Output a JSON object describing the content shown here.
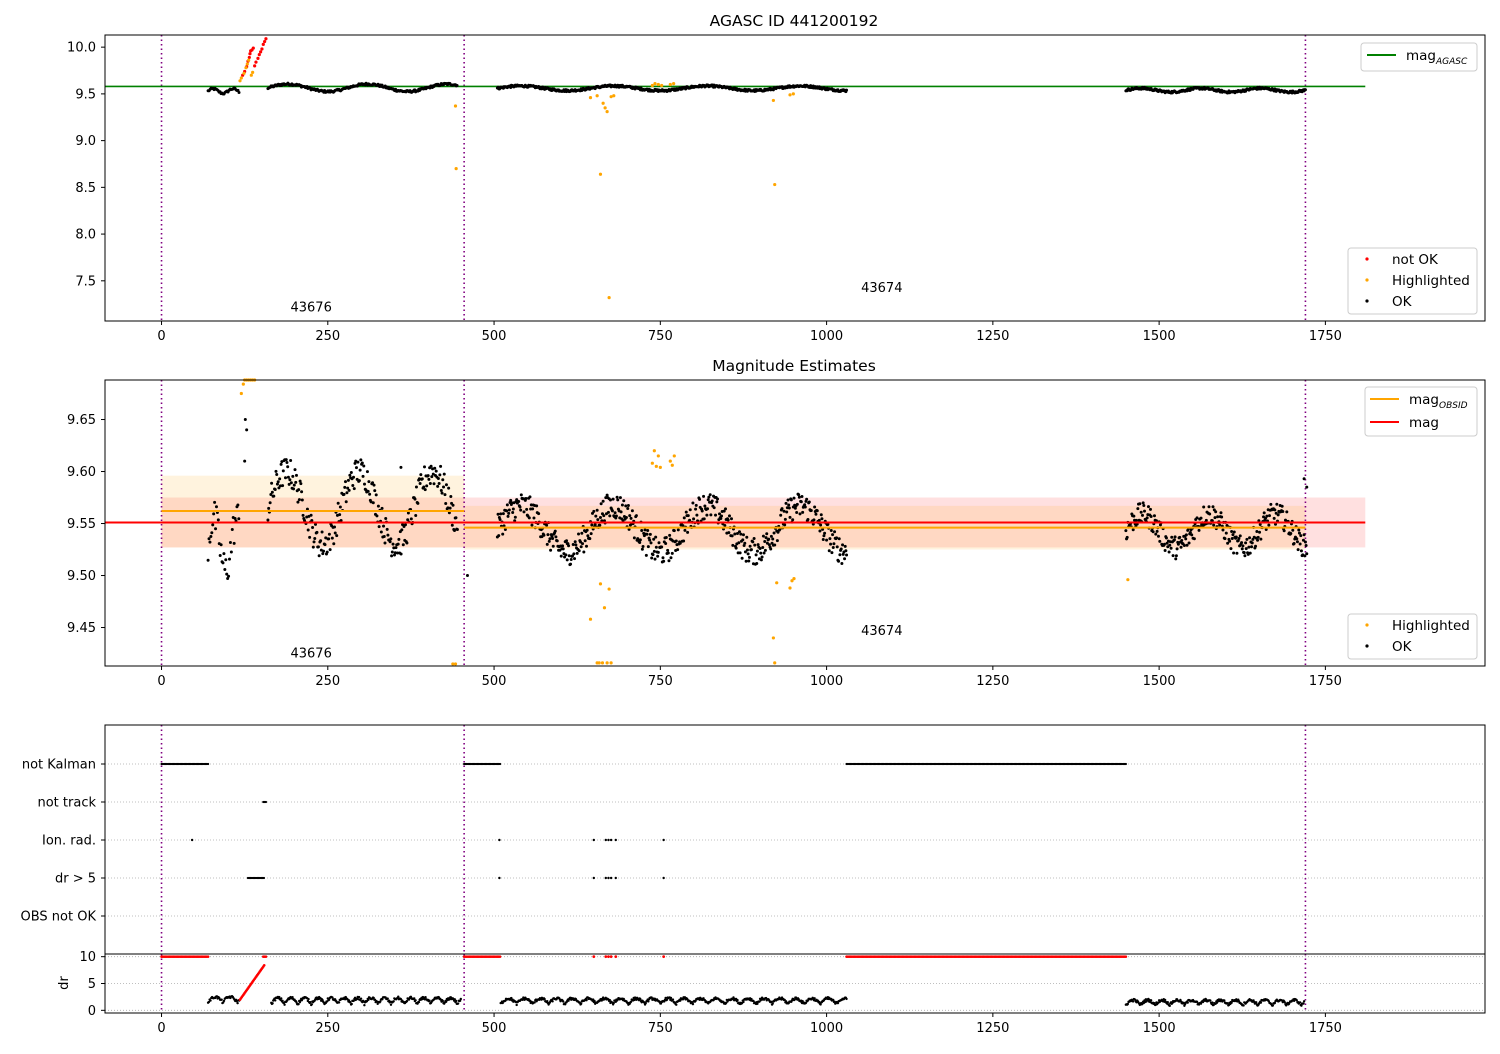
{
  "figure": {
    "panel1_title": "AGASC ID 441200192",
    "panel2_title": "Magnitude Estimates"
  },
  "chart_data": [
    {
      "type": "scatter",
      "title": "AGASC ID 441200192",
      "xlabel": "",
      "ylabel": "",
      "xlim": [
        -85,
        1990
      ],
      "ylim": [
        7.07,
        10.13
      ],
      "xticks": [
        0,
        250,
        500,
        750,
        1000,
        1250,
        1500,
        1750
      ],
      "yticks": [
        7.5,
        8.0,
        8.5,
        9.0,
        9.5,
        10.0
      ],
      "grid": false,
      "obsid_boundaries": [
        0,
        455,
        1720
      ],
      "obsid_labels": [
        {
          "text": "43676",
          "x": 225,
          "y": 7.17
        },
        {
          "text": "43674",
          "x": 1083,
          "y": 7.38
        }
      ],
      "reference_lines": [
        {
          "name": "mag_AGASC",
          "legend": "mag",
          "legend_sub": "AGASC",
          "y": 9.58,
          "x_range": [
            -85,
            1810
          ],
          "color": "#008000"
        }
      ],
      "series": [
        {
          "name": "not OK",
          "color": "#ff0000",
          "points": [
            [
              122,
              9.7
            ],
            [
              125,
              9.74
            ],
            [
              128,
              9.79
            ],
            [
              130,
              9.85
            ],
            [
              132,
              9.89
            ],
            [
              133,
              9.93
            ],
            [
              134,
              9.96
            ],
            [
              136,
              9.97
            ],
            [
              138,
              9.99
            ],
            [
              140,
              9.8
            ],
            [
              142,
              9.84
            ],
            [
              145,
              9.88
            ],
            [
              147,
              9.92
            ],
            [
              149,
              9.95
            ],
            [
              151,
              9.98
            ],
            [
              153,
              10.03
            ],
            [
              155,
              10.06
            ],
            [
              157,
              10.09
            ]
          ]
        },
        {
          "name": "Highlighted",
          "color": "#ffa500",
          "points": [
            [
              118,
              9.64
            ],
            [
              120,
              9.67
            ],
            [
              124,
              9.72
            ],
            [
              127,
              9.78
            ],
            [
              129,
              9.82
            ],
            [
              131,
              9.86
            ],
            [
              135,
              9.7
            ],
            [
              137,
              9.73
            ],
            [
              442,
              9.37
            ],
            [
              443,
              8.7
            ],
            [
              645,
              9.46
            ],
            [
              655,
              9.48
            ],
            [
              660,
              8.64
            ],
            [
              664,
              9.4
            ],
            [
              667,
              9.35
            ],
            [
              670,
              9.31
            ],
            [
              673,
              7.32
            ],
            [
              676,
              9.47
            ],
            [
              680,
              9.48
            ],
            [
              738,
              9.59
            ],
            [
              742,
              9.61
            ],
            [
              747,
              9.6
            ],
            [
              752,
              9.59
            ],
            [
              765,
              9.6
            ],
            [
              770,
              9.61
            ],
            [
              920,
              9.43
            ],
            [
              922,
              8.53
            ],
            [
              945,
              9.49
            ],
            [
              950,
              9.5
            ]
          ]
        },
        {
          "name": "OK",
          "color": "#000000",
          "segments": [
            {
              "x_start": 70,
              "x_end": 117,
              "step": 1.5,
              "base": 9.53,
              "amp": 0.025,
              "period": 30
            },
            {
              "x_start": 160,
              "x_end": 445,
              "step": 1.2,
              "base": 9.565,
              "amp": 0.04,
              "period": 120
            },
            {
              "x_start": 505,
              "x_end": 1030,
              "step": 1.0,
              "base": 9.56,
              "amp": 0.025,
              "period": 140
            },
            {
              "x_start": 1450,
              "x_end": 1720,
              "step": 1.0,
              "base": 9.54,
              "amp": 0.02,
              "period": 90
            }
          ]
        }
      ],
      "legend": {
        "entries": [
          "not OK",
          "Highlighted",
          "OK"
        ],
        "placement": "lower-right"
      }
    },
    {
      "type": "scatter",
      "title": "Magnitude Estimates",
      "xlabel": "",
      "ylabel": "",
      "xlim": [
        -85,
        1990
      ],
      "ylim": [
        9.413,
        9.688
      ],
      "xticks": [
        0,
        250,
        500,
        750,
        1000,
        1250,
        1500,
        1750
      ],
      "yticks": [
        9.45,
        9.5,
        9.55,
        9.6,
        9.65
      ],
      "grid": false,
      "obsid_boundaries": [
        0,
        455,
        1720
      ],
      "obsid_labels": [
        {
          "text": "43676",
          "x": 225,
          "y": 9.421
        },
        {
          "text": "43674",
          "x": 1083,
          "y": 9.443
        }
      ],
      "bands": [
        {
          "name": "mag band",
          "y_range": [
            9.527,
            9.575
          ],
          "x_range": [
            0,
            1810
          ],
          "color": "#ff0000",
          "opacity": 0.12
        },
        {
          "name": "mag_OBSID 43676 band",
          "y_range": [
            9.527,
            9.596
          ],
          "x_range": [
            0,
            455
          ],
          "color": "#ffa500",
          "opacity": 0.13
        },
        {
          "name": "mag_OBSID 43674 band",
          "y_range": [
            9.525,
            9.567
          ],
          "x_range": [
            455,
            1720
          ],
          "color": "#ffa500",
          "opacity": 0.13
        }
      ],
      "reference_lines": [
        {
          "name": "mag_OBSID 43676",
          "y": 9.562,
          "x_range": [
            0,
            455
          ],
          "color": "#ffa500"
        },
        {
          "name": "mag_OBSID 43674",
          "y": 9.546,
          "x_range": [
            455,
            1720
          ],
          "color": "#ffa500"
        },
        {
          "name": "mag",
          "y": 9.551,
          "x_range": [
            -85,
            1810
          ],
          "color": "#ff0000"
        }
      ],
      "series": [
        {
          "name": "Highlighted",
          "color": "#ffa500",
          "points": [
            [
              120,
              9.675
            ],
            [
              123,
              9.684
            ],
            [
              125,
              9.688
            ],
            [
              128,
              9.688
            ],
            [
              131,
              9.688
            ],
            [
              134,
              9.688
            ],
            [
              137,
              9.688
            ],
            [
              140,
              9.688
            ],
            [
              438,
              9.415
            ],
            [
              442,
              9.415
            ],
            [
              645,
              9.458
            ],
            [
              655,
              9.416
            ],
            [
              658,
              9.416
            ],
            [
              660,
              9.492
            ],
            [
              663,
              9.416
            ],
            [
              666,
              9.469
            ],
            [
              670,
              9.416
            ],
            [
              673,
              9.487
            ],
            [
              676,
              9.416
            ],
            [
              738,
              9.608
            ],
            [
              741,
              9.62
            ],
            [
              744,
              9.605
            ],
            [
              747,
              9.615
            ],
            [
              750,
              9.604
            ],
            [
              765,
              9.61
            ],
            [
              768,
              9.606
            ],
            [
              771,
              9.615
            ],
            [
              920,
              9.44
            ],
            [
              922,
              9.416
            ],
            [
              925,
              9.493
            ],
            [
              945,
              9.488
            ],
            [
              948,
              9.495
            ],
            [
              951,
              9.497
            ],
            [
              1453,
              9.496
            ]
          ]
        },
        {
          "name": "OK",
          "color": "#000000",
          "segments": [
            {
              "x_start": 70,
              "x_end": 117,
              "step": 1.4,
              "base": 9.53,
              "amp": 0.025,
              "period": 35,
              "noise": 0.018
            },
            {
              "x_start": 160,
              "x_end": 445,
              "step": 1.1,
              "base": 9.565,
              "amp": 0.035,
              "period": 110,
              "noise": 0.014
            },
            {
              "x_start": 505,
              "x_end": 1030,
              "step": 1.0,
              "base": 9.545,
              "amp": 0.022,
              "period": 140,
              "noise": 0.013
            },
            {
              "x_start": 1450,
              "x_end": 1722,
              "step": 1.0,
              "base": 9.543,
              "amp": 0.016,
              "period": 100,
              "noise": 0.011
            }
          ],
          "extra_points": [
            [
              125,
              9.61
            ],
            [
              128,
              9.64
            ],
            [
              126,
              9.65
            ],
            [
              360,
              9.604
            ],
            [
              460,
              9.5
            ],
            [
              610,
              9.515
            ],
            [
              1718,
              9.593
            ],
            [
              1722,
              9.585
            ]
          ]
        }
      ],
      "legends": [
        {
          "entries": [
            {
              "label": "mag",
              "sub": "OBSID",
              "color": "#ffa500"
            },
            {
              "label": "mag",
              "sub": "",
              "color": "#ff0000"
            }
          ],
          "placement": "upper-right"
        },
        {
          "entries": [
            "Highlighted",
            "OK"
          ],
          "placement": "lower-right"
        }
      ]
    },
    {
      "type": "scatter",
      "title": "",
      "xlabel": "",
      "ylabel": "",
      "xlim": [
        -85,
        1990
      ],
      "xticks": [
        0,
        250,
        500,
        750,
        1000,
        1250,
        1500,
        1750
      ],
      "categories": [
        "not Kalman",
        "not track",
        "Ion. rad.",
        "dr > 5",
        "OBS not OK"
      ],
      "grid": "dotted horizontal",
      "obsid_boundaries": [
        0,
        455,
        1720
      ],
      "flags": [
        {
          "category": "not Kalman",
          "ranges": [
            [
              0,
              70
            ],
            [
              455,
              510
            ],
            [
              1030,
              1450
            ]
          ],
          "singles": []
        },
        {
          "category": "not track",
          "ranges": [
            [
              153,
              158
            ]
          ],
          "singles": []
        },
        {
          "category": "Ion. rad.",
          "ranges": [],
          "singles": [
            46,
            508,
            650,
            668,
            672,
            676,
            683,
            755
          ]
        },
        {
          "category": "dr > 5",
          "ranges": [
            [
              130,
              155
            ]
          ],
          "singles": [
            508,
            650,
            668,
            672,
            676,
            683,
            755
          ]
        },
        {
          "category": "OBS not OK",
          "ranges": [],
          "singles": []
        }
      ]
    },
    {
      "type": "scatter",
      "title": "",
      "xlabel": "",
      "ylabel": "dr",
      "xlim": [
        -85,
        1990
      ],
      "ylim": [
        -0.5,
        10.5
      ],
      "xticks": [
        0,
        250,
        500,
        750,
        1000,
        1250,
        1500,
        1750
      ],
      "yticks": [
        0,
        5,
        10
      ],
      "grid": "dotted horizontal",
      "obsid_boundaries": [
        0,
        455,
        1720
      ],
      "series": [
        {
          "name": "dr OK",
          "color": "#000000",
          "segments": [
            {
              "x_start": 70,
              "x_end": 117,
              "step": 1.2,
              "base": 1.5,
              "amp": 1.0,
              "period": 22
            },
            {
              "x_start": 165,
              "x_end": 450,
              "step": 1.0,
              "base": 1.2,
              "amp": 1.1,
              "period": 20
            },
            {
              "x_start": 510,
              "x_end": 1030,
              "step": 1.0,
              "base": 1.2,
              "amp": 1.0,
              "period": 24
            },
            {
              "x_start": 1450,
              "x_end": 1718,
              "step": 1.0,
              "base": 1.0,
              "amp": 0.9,
              "period": 22
            }
          ]
        },
        {
          "name": "dr not OK",
          "color": "#ff0000",
          "ramp": {
            "x_start": 118,
            "x_end": 155,
            "y_start": 2.0,
            "y_end": 8.5
          },
          "saturated_ranges": [
            [
              0,
              70
            ],
            [
              153,
              158
            ],
            [
              455,
              510
            ],
            [
              1030,
              1450
            ]
          ],
          "saturated_singles": [
            650,
            668,
            672,
            676,
            683,
            755
          ],
          "saturated_value": 10
        }
      ]
    }
  ]
}
